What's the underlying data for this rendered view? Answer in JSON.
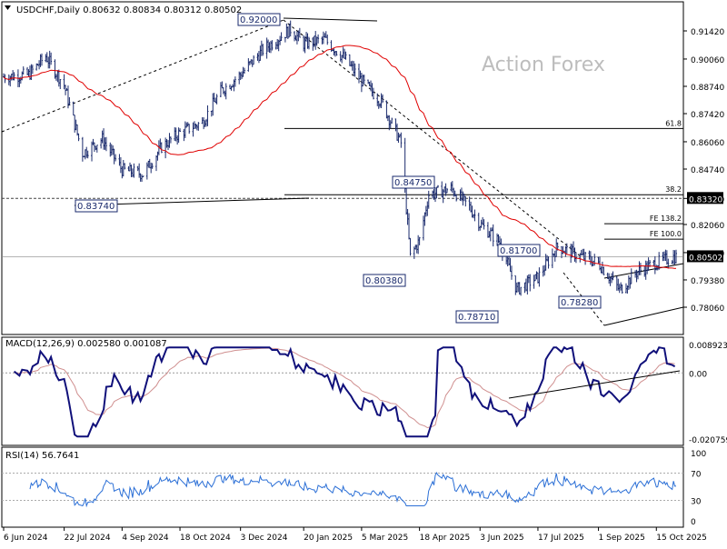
{
  "chart_data": {
    "type": "candlestick-with-indicators",
    "header": {
      "symbol": "USDCHF,Daily",
      "ohlc": "0.80632 0.80834 0.80312 0.80502"
    },
    "watermark": "Action Forex",
    "price_axis": {
      "min": 0.78,
      "max": 0.914,
      "ticks": [
        "0.91420",
        "0.90060",
        "0.88740",
        "0.87420",
        "0.86060",
        "0.84740",
        "0.83320",
        "0.82060",
        "0.80700",
        "0.79380",
        "0.78060"
      ],
      "current_price_label": "0.80502",
      "current_price": 0.80502,
      "hline_label": "0.83320",
      "hline_price": 0.8332
    },
    "date_axis": {
      "labels": [
        "6 Jun 2024",
        "22 Jul 2024",
        "4 Sep 2024",
        "18 Oct 2024",
        "3 Dec 2024",
        "20 Jan 2025",
        "5 Mar 2025",
        "18 Apr 2025",
        "3 Jun 2025",
        "17 Jul 2025",
        "1 Sep 2025",
        "15 Oct 2025"
      ]
    },
    "annotations": [
      "0.92000",
      "0.83740",
      "0.84750",
      "0.80380",
      "0.78710",
      "0.81700",
      "0.78280"
    ],
    "fib_levels": [
      {
        "label": "61.8",
        "price": 0.867
      },
      {
        "label": "38.2",
        "price": 0.835
      },
      {
        "label": "FE 138.2",
        "price": 0.821
      },
      {
        "label": "FE 100.0",
        "price": 0.8135
      }
    ],
    "close_series": [
      {
        "date": "2024-06-06",
        "close": 0.892
      },
      {
        "date": "2024-06-25",
        "close": 0.893
      },
      {
        "date": "2024-07-08",
        "close": 0.902
      },
      {
        "date": "2024-07-22",
        "close": 0.888
      },
      {
        "date": "2024-08-05",
        "close": 0.855
      },
      {
        "date": "2024-08-20",
        "close": 0.862
      },
      {
        "date": "2024-09-04",
        "close": 0.847
      },
      {
        "date": "2024-09-20",
        "close": 0.845
      },
      {
        "date": "2024-10-04",
        "close": 0.858
      },
      {
        "date": "2024-10-18",
        "close": 0.865
      },
      {
        "date": "2024-11-04",
        "close": 0.87
      },
      {
        "date": "2024-11-18",
        "close": 0.885
      },
      {
        "date": "2024-12-03",
        "close": 0.893
      },
      {
        "date": "2024-12-20",
        "close": 0.905
      },
      {
        "date": "2025-01-10",
        "close": 0.915
      },
      {
        "date": "2025-01-20",
        "close": 0.908
      },
      {
        "date": "2025-02-05",
        "close": 0.91
      },
      {
        "date": "2025-02-20",
        "close": 0.901
      },
      {
        "date": "2025-03-05",
        "close": 0.89
      },
      {
        "date": "2025-03-20",
        "close": 0.88
      },
      {
        "date": "2025-04-04",
        "close": 0.86
      },
      {
        "date": "2025-04-11",
        "close": 0.805
      },
      {
        "date": "2025-04-18",
        "close": 0.813
      },
      {
        "date": "2025-04-25",
        "close": 0.835
      },
      {
        "date": "2025-05-12",
        "close": 0.838
      },
      {
        "date": "2025-05-26",
        "close": 0.829
      },
      {
        "date": "2025-06-03",
        "close": 0.821
      },
      {
        "date": "2025-06-18",
        "close": 0.812
      },
      {
        "date": "2025-07-01",
        "close": 0.789
      },
      {
        "date": "2025-07-17",
        "close": 0.795
      },
      {
        "date": "2025-08-01",
        "close": 0.81
      },
      {
        "date": "2025-08-15",
        "close": 0.806
      },
      {
        "date": "2025-09-01",
        "close": 0.802
      },
      {
        "date": "2025-09-17",
        "close": 0.789
      },
      {
        "date": "2025-10-01",
        "close": 0.798
      },
      {
        "date": "2025-10-15",
        "close": 0.802
      },
      {
        "date": "2025-10-28",
        "close": 0.805
      }
    ],
    "macd": {
      "label": "MACD(12,26,9) 0.002580 0.001087",
      "ticks": [
        "0.008923",
        "0.00",
        "-0.020759"
      ]
    },
    "rsi": {
      "label": "RSI(14) 56.7641",
      "ticks": [
        "100",
        "70",
        "30",
        "0"
      ]
    }
  }
}
